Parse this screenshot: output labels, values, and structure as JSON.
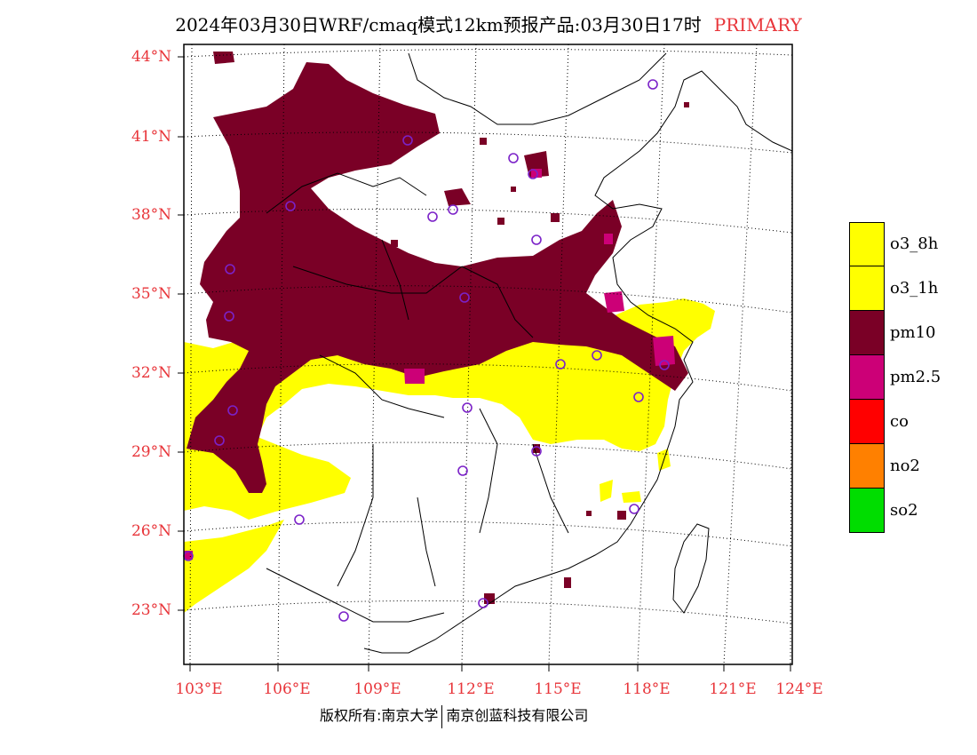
{
  "title": {
    "text": "2024年03月30日WRF/cmaq模式12km预报产品:03月30日17时",
    "tag": "PRIMARY"
  },
  "axes": {
    "lat_labels": [
      "44°N",
      "41°N",
      "38°N",
      "35°N",
      "32°N",
      "29°N",
      "26°N",
      "23°N"
    ],
    "lon_labels": [
      "103°E",
      "106°E",
      "109°E",
      "112°E",
      "115°E",
      "118°E",
      "121°E",
      "124°E"
    ]
  },
  "legend": {
    "items": [
      {
        "label": "o3_8h",
        "color": "#ffff00"
      },
      {
        "label": "o3_1h",
        "color": "#ffff00"
      },
      {
        "label": "pm10",
        "color": "#7a0026"
      },
      {
        "label": "pm2.5",
        "color": "#cc0077"
      },
      {
        "label": "co",
        "color": "#ff0000"
      },
      {
        "label": "no2",
        "color": "#ff8000"
      },
      {
        "label": "so2",
        "color": "#00dd00"
      }
    ]
  },
  "footer": {
    "left": "版权所有:南京大学",
    "right": "南京创蓝科技有限公司"
  },
  "colors": {
    "o3": "#ffff00",
    "pm10": "#7a0026",
    "pm25": "#cc0077",
    "station": "#7b22c8",
    "label_red": "#e8353a"
  }
}
